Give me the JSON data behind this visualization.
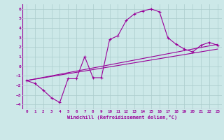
{
  "xlabel": "Windchill (Refroidissement éolien,°C)",
  "bg_color": "#cce8e8",
  "line_color": "#990099",
  "grid_color": "#aacccc",
  "xlim": [
    -0.5,
    23.5
  ],
  "ylim": [
    -4.5,
    6.5
  ],
  "xticks": [
    0,
    1,
    2,
    3,
    4,
    5,
    6,
    7,
    8,
    9,
    10,
    11,
    12,
    13,
    14,
    15,
    16,
    17,
    18,
    19,
    20,
    21,
    22,
    23
  ],
  "yticks": [
    -4,
    -3,
    -2,
    -1,
    0,
    1,
    2,
    3,
    4,
    5,
    6
  ],
  "main_x": [
    0,
    1,
    2,
    3,
    4,
    5,
    6,
    7,
    8,
    9,
    10,
    11,
    12,
    13,
    14,
    15,
    16,
    17,
    18,
    19,
    20,
    21,
    22,
    23
  ],
  "main_y": [
    -1.5,
    -1.8,
    -2.5,
    -3.3,
    -3.8,
    -1.3,
    -1.3,
    1.0,
    -1.2,
    -1.2,
    2.8,
    3.2,
    4.8,
    5.5,
    5.8,
    6.0,
    5.7,
    3.0,
    2.3,
    1.8,
    1.5,
    2.2,
    2.5,
    2.2
  ],
  "line1_x": [
    0,
    23
  ],
  "line1_y": [
    -1.5,
    2.3
  ],
  "line2_x": [
    0,
    23
  ],
  "line2_y": [
    -1.5,
    1.8
  ]
}
